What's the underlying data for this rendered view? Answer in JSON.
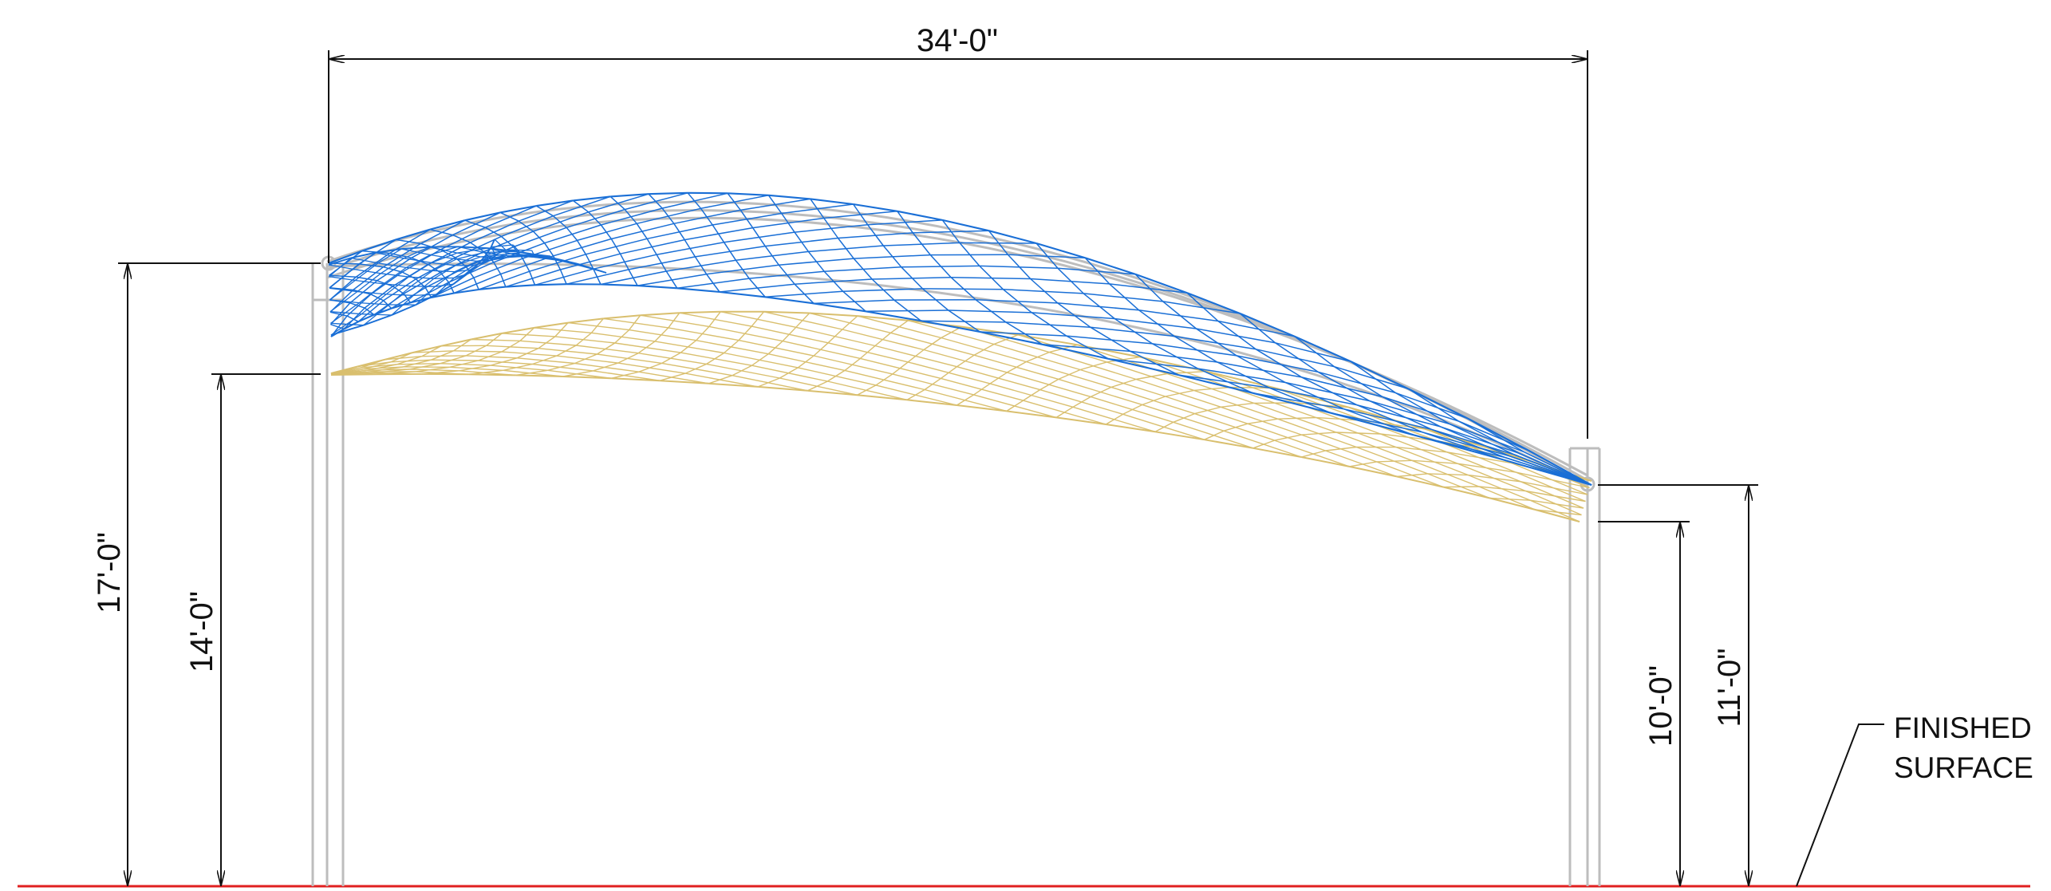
{
  "drawing": {
    "dimensions": {
      "span": "34'-0\"",
      "left_high_attach": "17'-0\"",
      "left_low_attach": "14'-0\"",
      "right_low_attach": "10'-0\"",
      "right_high_attach": "11'-0\""
    },
    "notes": {
      "finished_surface_line1": "FINISHED",
      "finished_surface_line2": "SURFACE"
    },
    "colors": {
      "canopy_upper": "#1a6fd6",
      "canopy_lower": "#d9bf6e",
      "structure": "#bdbdbd",
      "dimension": "#111111",
      "ground": "#e02020"
    }
  }
}
